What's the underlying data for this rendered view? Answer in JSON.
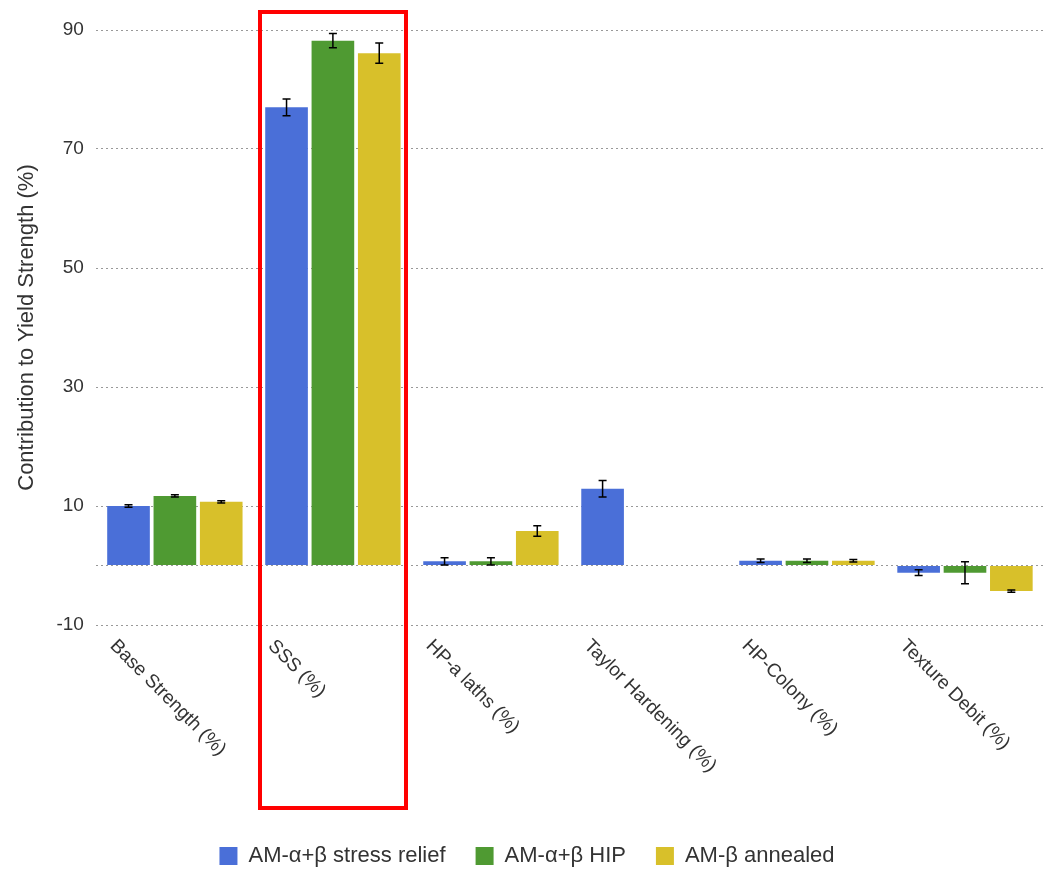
{
  "chart_data": {
    "type": "bar",
    "ylabel": "Contribution to Yield Strength (%)",
    "categories": [
      "Base Strength (%)",
      "SSS (%)",
      "HP-a laths (%)",
      "Taylor Hardening (%)",
      "HP-Colony (%)",
      "Texture Debit (%)"
    ],
    "series": [
      {
        "name": "AM-α+β stress relief",
        "color": "#4a6fd8",
        "values": [
          10,
          77,
          0.7,
          12.9,
          0.8,
          -1.2
        ],
        "errors": [
          0.2,
          1.4,
          0.6,
          1.4,
          0.3,
          0.5
        ]
      },
      {
        "name": "AM-α+β HIP",
        "color": "#4f9a32",
        "values": [
          11.7,
          88.2,
          0.7,
          null,
          0.8,
          -1.2
        ],
        "errors": [
          0.2,
          1.2,
          0.6,
          null,
          0.3,
          1.85
        ]
      },
      {
        "name": "AM-β annealed",
        "color": "#d8c02a",
        "values": [
          10.7,
          86.1,
          5.8,
          null,
          0.8,
          -4.3
        ],
        "errors": [
          0.2,
          1.7,
          0.9,
          null,
          0.2,
          0.2
        ]
      }
    ],
    "ylim": [
      -10,
      90
    ],
    "yticks": [
      -10,
      {
        "value": 0,
        "label": null
      },
      10,
      30,
      50,
      70,
      90
    ],
    "grid": "y",
    "legend": "bottom"
  }
}
